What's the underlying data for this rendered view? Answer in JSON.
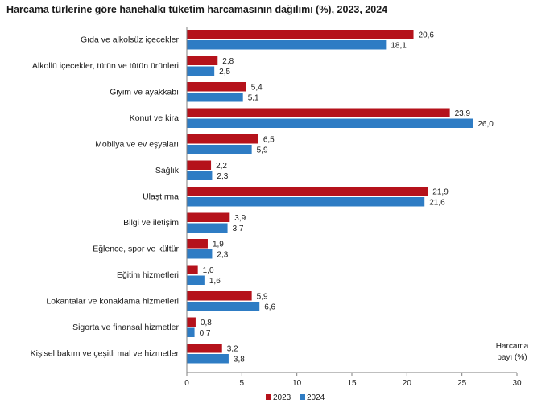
{
  "chart_data": {
    "type": "bar",
    "orientation": "horizontal",
    "title": "Harcama türlerine göre hanehalkı tüketim harcamasının dağılımı (%), 2023, 2024",
    "categories": [
      "Gıda ve alkolsüz içecekler",
      "Alkollü içecekler, tütün ve tütün ürünleri",
      "Giyim ve ayakkabı",
      "Konut ve kira",
      "Mobilya ve ev eşyaları",
      "Sağlık",
      "Ulaştırma",
      "Bilgi ve iletişim",
      "Eğlence, spor ve kültür",
      "Eğitim hizmetleri",
      "Lokantalar ve konaklama hizmetleri",
      "Sigorta ve finansal hizmetler",
      "Kişisel bakım ve çeşitli mal ve hizmetler"
    ],
    "series": [
      {
        "name": "2023",
        "color": "#b5121b",
        "values": [
          20.6,
          2.8,
          5.4,
          23.9,
          6.5,
          2.2,
          21.9,
          3.9,
          1.9,
          1.0,
          5.9,
          0.8,
          3.2
        ],
        "labels": [
          "20,6",
          "2,8",
          "5,4",
          "23,9",
          "6,5",
          "2,2",
          "21,9",
          "3,9",
          "1,9",
          "1,0",
          "5,9",
          "0,8",
          "3,2"
        ]
      },
      {
        "name": "2024",
        "color": "#2e7cc4",
        "values": [
          18.1,
          2.5,
          5.1,
          26.0,
          5.9,
          2.3,
          21.6,
          3.7,
          2.3,
          1.6,
          6.6,
          0.7,
          3.8
        ],
        "labels": [
          "18,1",
          "2,5",
          "5,1",
          "26,0",
          "5,9",
          "2,3",
          "21,6",
          "3,7",
          "2,3",
          "1,6",
          "6,6",
          "0,7",
          "3,8"
        ]
      }
    ],
    "xlim": [
      0,
      30
    ],
    "xticks": [
      0,
      5,
      10,
      15,
      20,
      25,
      30
    ],
    "xlabel_line1": "Harcama",
    "xlabel_line2": "payı   (%)",
    "legend_position": "bottom-center",
    "grid": false
  }
}
